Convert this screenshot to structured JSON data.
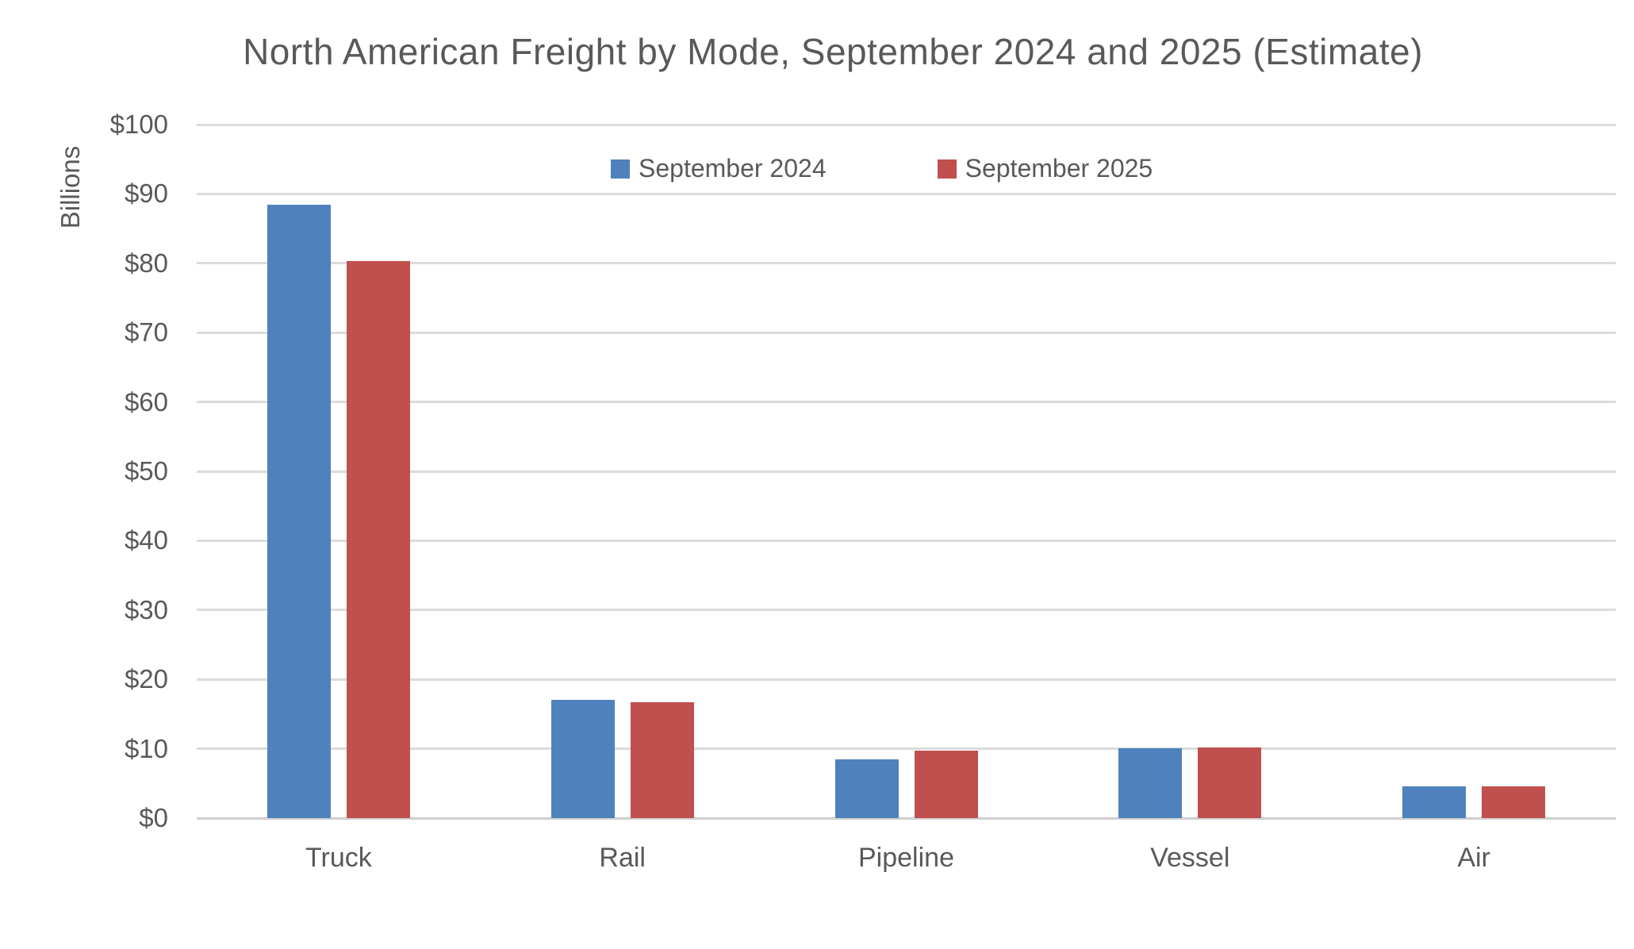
{
  "chart_data": {
    "type": "bar",
    "title": "North American Freight by Mode, September 2024 and 2025 (Estimate)",
    "ylabel": "Billions",
    "xlabel": "",
    "categories": [
      "Truck",
      "Rail",
      "Pipeline",
      "Vessel",
      "Air"
    ],
    "series": [
      {
        "name": "September 2024",
        "color": "#4F81BD",
        "values": [
          88.5,
          17.1,
          8.5,
          10.1,
          4.6
        ]
      },
      {
        "name": "September 2025",
        "color": "#C0504D",
        "values": [
          80.3,
          16.7,
          9.7,
          10.2,
          4.6
        ]
      }
    ],
    "ylim": [
      0,
      100
    ],
    "ytick_interval": 10,
    "ytick_labels": [
      "$0",
      "$10",
      "$20",
      "$30",
      "$40",
      "$50",
      "$60",
      "$70",
      "$80",
      "$90",
      "$100"
    ],
    "grid": true,
    "legend_position": "top-center"
  },
  "style": {
    "text_color": "#595959",
    "gridline_color": "#DBDBDB",
    "axis_line_color": "#CFCFCF",
    "background_color": "#FFFFFF"
  }
}
